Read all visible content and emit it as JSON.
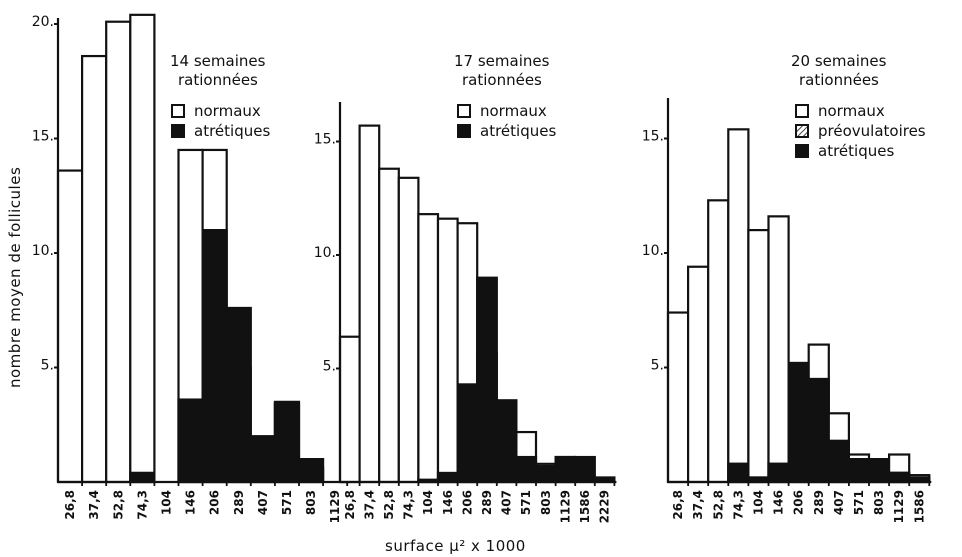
{
  "chart_data": {
    "ylabel": "nombre moyen de follicules",
    "xlabel": "surface µ² x 1000",
    "panels": [
      {
        "type": "bar",
        "title": [
          "14 semaines",
          "rationnées"
        ],
        "y_ticks": [
          "5.",
          "10.",
          "15.",
          "20."
        ],
        "y_tick_values": [
          5,
          10,
          15,
          20
        ],
        "categories": [
          "26,8",
          "37,4",
          "52,8",
          "74,3",
          "104",
          "146",
          "206",
          "289",
          "407",
          "571",
          "803",
          "1129"
        ],
        "series": [
          {
            "name": "normaux",
            "values": [
              13.6,
              18.6,
              20.1,
              20.4,
              0,
              14.5,
              14.5,
              5.0,
              1.3,
              3.4,
              0.6,
              0
            ]
          },
          {
            "name": "atrétiques",
            "values": [
              0,
              0,
              0,
              0.4,
              0,
              3.6,
              11.0,
              7.6,
              2.0,
              3.5,
              1.0,
              0
            ]
          }
        ],
        "legend": [
          {
            "label": "normaux",
            "style": "white"
          },
          {
            "label": "atrétiques",
            "style": "black"
          }
        ]
      },
      {
        "type": "bar",
        "title": [
          "17 semaines",
          "rationnées"
        ],
        "y_ticks": [
          "5.",
          "10.",
          "15."
        ],
        "y_tick_values": [
          5,
          10,
          15
        ],
        "categories": [
          "26,8",
          "37,4",
          "52,8",
          "74,3",
          "104",
          "146",
          "206",
          "289",
          "407",
          "571",
          "803",
          "1129",
          "1586",
          "2229"
        ],
        "series": [
          {
            "name": "normaux",
            "values": [
              6.4,
              15.7,
              13.8,
              13.4,
              11.8,
              11.6,
              11.4,
              5.7,
              1.8,
              2.2,
              0.8,
              1.1,
              0,
              0
            ]
          },
          {
            "name": "atrétiques",
            "values": [
              0,
              0,
              0,
              0,
              0.1,
              0.4,
              4.3,
              9.0,
              3.6,
              1.1,
              0.7,
              1.1,
              1.1,
              0.2
            ]
          }
        ],
        "legend": [
          {
            "label": "normaux",
            "style": "white"
          },
          {
            "label": "atrétiques",
            "style": "black"
          }
        ]
      },
      {
        "type": "bar",
        "title": [
          "20 semaines",
          "rationnées"
        ],
        "y_ticks": [
          "5.",
          "10.",
          "15."
        ],
        "y_tick_values": [
          5,
          10,
          15
        ],
        "categories": [
          "26,8",
          "37,4",
          "52,8",
          "74,3",
          "104",
          "146",
          "206",
          "289",
          "407",
          "571",
          "803",
          "1129",
          "1586"
        ],
        "series": [
          {
            "name": "normaux",
            "values": [
              7.4,
              9.4,
              12.3,
              15.4,
              11.0,
              11.6,
              5.1,
              6.0,
              3.0,
              1.2,
              1.0,
              1.2,
              0.3
            ]
          },
          {
            "name": "préovulatoires",
            "values": [
              0,
              0,
              0,
              0,
              0,
              0,
              0,
              0,
              0,
              0,
              0,
              0.4,
              0
            ]
          },
          {
            "name": "atrétiques",
            "values": [
              0,
              0,
              0,
              0.8,
              0.2,
              0.8,
              5.2,
              4.5,
              1.8,
              1.0,
              1.0,
              0.4,
              0.2
            ]
          }
        ],
        "legend": [
          {
            "label": "normaux",
            "style": "white"
          },
          {
            "label": "préovulatoires",
            "style": "hatch"
          },
          {
            "label": "atrétiques",
            "style": "black"
          }
        ]
      }
    ]
  }
}
